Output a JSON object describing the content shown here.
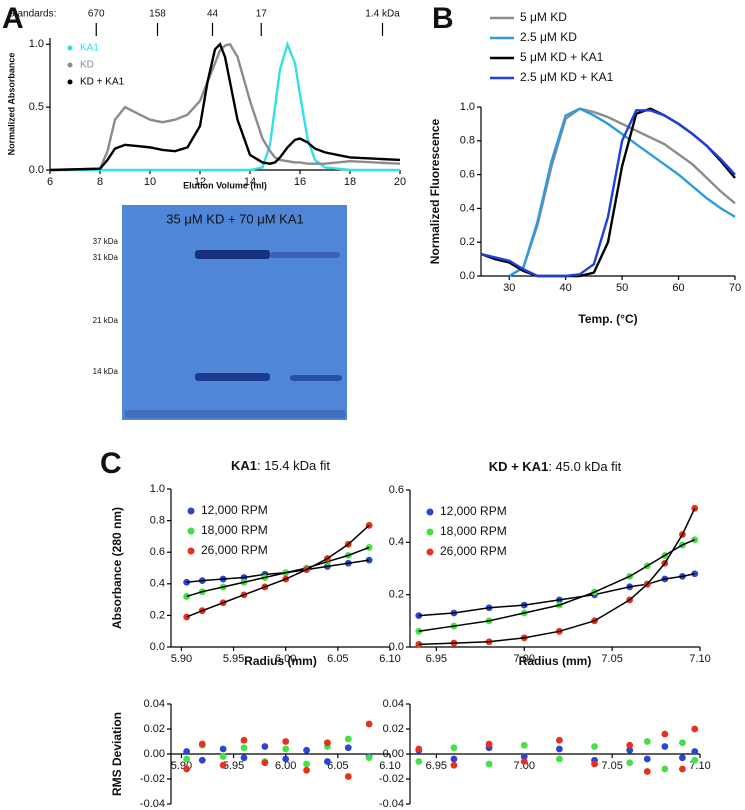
{
  "panel_labels": [
    "A",
    "B",
    "C"
  ],
  "gel": {
    "title": "35 μM KD + 70 μM KA1",
    "markers": [
      "37 kDa",
      "31 kDa",
      "21 kDa",
      "14 kDa"
    ]
  },
  "chart_data": [
    {
      "type": "line",
      "ylabel": "Normalized Absorbance",
      "xlabel": "Elution Volume (ml)",
      "xlim": [
        6,
        20
      ],
      "xticks": [
        6,
        8,
        10,
        12,
        14,
        16,
        18,
        20
      ],
      "ylim": [
        0,
        1.05
      ],
      "yticks": [
        {
          "value": 0,
          "label": "0.0"
        },
        0.5,
        {
          "value": 1,
          "label": "1.0"
        }
      ],
      "legend": "upper left",
      "legend_style": "dot",
      "legend_text": "colored",
      "standards_label": "Standards:",
      "standards": [
        {
          "x": 7.85,
          "label": "670"
        },
        {
          "x": 10.3,
          "label": "158"
        },
        {
          "x": 12.5,
          "label": "44"
        },
        {
          "x": 14.45,
          "label": "17"
        },
        {
          "x": 19.3,
          "label": "1.4 kDa"
        }
      ],
      "x": [
        6,
        8,
        8.3,
        8.6,
        9,
        9.5,
        10,
        10.5,
        11,
        11.5,
        12,
        12.3,
        12.6,
        12.8,
        13,
        13.2,
        13.5,
        14,
        14.5,
        14.8,
        15,
        15.2,
        15.5,
        15.8,
        16,
        16.3,
        16.6,
        17,
        18,
        19,
        20
      ],
      "series": [
        {
          "name": "KA1",
          "color": "#33e0e8",
          "values": [
            0,
            0,
            0,
            0,
            0,
            0,
            0,
            0,
            0,
            0,
            0,
            0,
            0,
            0,
            0,
            0,
            0,
            0,
            0.02,
            0.2,
            0.5,
            0.8,
            1.0,
            0.85,
            0.6,
            0.25,
            0.08,
            0.02,
            0,
            0,
            0
          ]
        },
        {
          "name": "KD",
          "color": "#8c8c8c",
          "values": [
            0,
            0.01,
            0.15,
            0.4,
            0.5,
            0.45,
            0.4,
            0.38,
            0.4,
            0.44,
            0.55,
            0.7,
            0.85,
            0.95,
            0.99,
            1.0,
            0.9,
            0.55,
            0.25,
            0.15,
            0.1,
            0.08,
            0.07,
            0.06,
            0.06,
            0.05,
            0.05,
            0.05,
            0.07,
            0.06,
            0.05
          ]
        },
        {
          "name": "KD + KA1",
          "color": "#000000",
          "values": [
            0,
            0.01,
            0.08,
            0.17,
            0.2,
            0.19,
            0.18,
            0.16,
            0.15,
            0.18,
            0.35,
            0.7,
            0.96,
            1.0,
            0.9,
            0.7,
            0.4,
            0.12,
            0.06,
            0.05,
            0.06,
            0.1,
            0.18,
            0.24,
            0.25,
            0.22,
            0.17,
            0.14,
            0.1,
            0.09,
            0.08
          ]
        }
      ]
    },
    {
      "type": "line",
      "ylabel": "Normalized Fluorescence",
      "xlabel": "Temp. (°C)",
      "xlim": [
        25,
        70
      ],
      "xticks": [
        30,
        40,
        50,
        60,
        70
      ],
      "ylim": [
        0,
        1.0
      ],
      "yticks": [
        {
          "value": 0,
          "label": "0.0"
        },
        0.2,
        0.4,
        0.6,
        0.8,
        {
          "value": 1,
          "label": "1.0"
        }
      ],
      "legend": "top",
      "legend_style": "line",
      "legend_text": "black",
      "x": [
        25,
        27.5,
        30,
        32.5,
        35,
        37.5,
        40,
        42.5,
        45,
        47.5,
        50,
        52.5,
        55,
        57.5,
        60,
        62.5,
        65,
        67.5,
        70
      ],
      "series": [
        {
          "name": "5 μM KD",
          "color": "#8c8c8c",
          "values": [
            null,
            null,
            0,
            0.05,
            0.3,
            0.65,
            0.93,
            0.99,
            0.97,
            0.94,
            0.9,
            0.86,
            0.82,
            0.78,
            0.72,
            0.66,
            0.58,
            0.5,
            0.43
          ]
        },
        {
          "name": "2.5 μM KD",
          "color": "#2e9be0",
          "values": [
            null,
            null,
            0,
            0.05,
            0.32,
            0.68,
            0.95,
            0.99,
            0.95,
            0.9,
            0.84,
            0.78,
            0.72,
            0.66,
            0.6,
            0.53,
            0.46,
            0.4,
            0.35
          ]
        },
        {
          "name": "5 μM KD + KA1",
          "color": "#000000",
          "values": [
            0.13,
            0.1,
            0.08,
            0.03,
            0,
            0,
            0,
            0,
            0.02,
            0.2,
            0.65,
            0.96,
            0.99,
            0.95,
            0.9,
            0.84,
            0.77,
            0.68,
            0.58
          ]
        },
        {
          "name": "2.5 μM KD + KA1",
          "color": "#1f3fd6",
          "values": [
            0.13,
            0.11,
            0.09,
            0.04,
            0,
            0,
            0,
            0.01,
            0.07,
            0.35,
            0.8,
            0.98,
            0.98,
            0.95,
            0.9,
            0.84,
            0.77,
            0.69,
            0.6
          ]
        }
      ]
    },
    {
      "type": "scatter",
      "title_bold": "KA1",
      "title": ": 15.4 kDa fit",
      "ylabel": "Absorbance (280 nm)",
      "xlabel": "Radius (mm)",
      "xlim": [
        5.89,
        6.1
      ],
      "xticks": [
        {
          "value": 5.9,
          "label": "5.90"
        },
        5.95,
        {
          "value": 6,
          "label": "6.00"
        },
        6.05,
        {
          "value": 6.1,
          "label": "6.10"
        }
      ],
      "ylim": [
        0,
        1.0
      ],
      "yticks": [
        {
          "value": 0,
          "label": "0.0"
        },
        0.2,
        0.4,
        0.6,
        0.8,
        {
          "value": 1,
          "label": "1.0"
        }
      ],
      "legend": "upper left",
      "fit_line": true,
      "fit_color": "#000000",
      "x": [
        5.905,
        5.92,
        5.94,
        5.96,
        5.98,
        6.0,
        6.02,
        6.04,
        6.06,
        6.08
      ],
      "series": [
        {
          "name": "12,000 RPM",
          "color": "#2b45d1",
          "values": [
            0.41,
            0.42,
            0.43,
            0.44,
            0.46,
            0.47,
            0.49,
            0.51,
            0.53,
            0.55
          ]
        },
        {
          "name": "18,000 RPM",
          "color": "#44e044",
          "values": [
            0.32,
            0.35,
            0.38,
            0.41,
            0.44,
            0.47,
            0.5,
            0.54,
            0.58,
            0.63
          ]
        },
        {
          "name": "26,000 RPM",
          "color": "#e8301c",
          "values": [
            0.19,
            0.23,
            0.28,
            0.33,
            0.38,
            0.43,
            0.49,
            0.56,
            0.65,
            0.77
          ]
        }
      ]
    },
    {
      "type": "scatter",
      "title_bold": "KD + KA1",
      "title": ": 45.0 kDa fit",
      "xlabel": "Radius (mm)",
      "xlim": [
        6.935,
        7.1
      ],
      "xticks": [
        6.95,
        {
          "value": 7,
          "label": "7.00"
        },
        7.05,
        {
          "value": 7.1,
          "label": "7.10"
        }
      ],
      "ylim": [
        0,
        0.6
      ],
      "yticks": [
        {
          "value": 0,
          "label": "0.0"
        },
        0.2,
        0.4,
        0.6
      ],
      "legend": "upper left",
      "fit_line": true,
      "fit_color": "#000000",
      "x": [
        6.94,
        6.96,
        6.98,
        7.0,
        7.02,
        7.04,
        7.06,
        7.07,
        7.08,
        7.09,
        7.097
      ],
      "series": [
        {
          "name": "12,000 RPM",
          "color": "#2b45d1",
          "values": [
            0.12,
            0.13,
            0.15,
            0.16,
            0.18,
            0.2,
            0.23,
            0.24,
            0.26,
            0.27,
            0.28
          ]
        },
        {
          "name": "18,000 RPM",
          "color": "#44e044",
          "values": [
            0.06,
            0.08,
            0.1,
            0.13,
            0.16,
            0.21,
            0.27,
            0.31,
            0.35,
            0.39,
            0.41
          ]
        },
        {
          "name": "26,000 RPM",
          "color": "#e8301c",
          "values": [
            0.01,
            0.015,
            0.02,
            0.035,
            0.06,
            0.1,
            0.18,
            0.24,
            0.32,
            0.43,
            0.53
          ]
        }
      ]
    },
    {
      "type": "scatter",
      "ylabel": "RMS Deviation",
      "xlim": [
        5.89,
        6.1
      ],
      "xticks": [
        {
          "value": 5.9,
          "label": "5.90"
        },
        5.95,
        {
          "value": 6,
          "label": "6.00"
        },
        6.05,
        {
          "value": 6.1,
          "label": "6.10"
        }
      ],
      "ylim": [
        -0.04,
        0.04
      ],
      "yticks": [
        -0.04,
        -0.02,
        {
          "value": 0,
          "label": "0.00"
        },
        0.02,
        0.04
      ],
      "x": [
        5.905,
        5.92,
        5.94,
        5.96,
        5.98,
        6.0,
        6.02,
        6.04,
        6.06,
        6.08
      ],
      "series": [
        {
          "color": "#2b45d1",
          "values": [
            0.002,
            -0.005,
            0.004,
            -0.003,
            0.006,
            -0.004,
            0.003,
            -0.006,
            0.005,
            -0.002
          ]
        },
        {
          "color": "#44e044",
          "values": [
            -0.004,
            0.007,
            -0.002,
            0.005,
            -0.006,
            0.004,
            -0.008,
            0.006,
            0.012,
            -0.003
          ]
        },
        {
          "color": "#e8301c",
          "values": [
            -0.012,
            0.008,
            -0.009,
            0.011,
            -0.007,
            0.01,
            -0.013,
            0.009,
            -0.018,
            0.024
          ]
        }
      ]
    },
    {
      "type": "scatter",
      "xlim": [
        6.935,
        7.1
      ],
      "xticks": [
        6.95,
        {
          "value": 7,
          "label": "7.00"
        },
        7.05,
        {
          "value": 7.1,
          "label": "7.10"
        }
      ],
      "ylim": [
        -0.04,
        0.04
      ],
      "yticks": [
        -0.04,
        -0.02,
        {
          "value": 0,
          "label": "0.00"
        },
        0.02,
        0.04
      ],
      "x": [
        6.94,
        6.96,
        6.98,
        7.0,
        7.02,
        7.04,
        7.06,
        7.07,
        7.08,
        7.09,
        7.097
      ],
      "series": [
        {
          "color": "#2b45d1",
          "values": [
            0.003,
            -0.004,
            0.005,
            -0.002,
            0.004,
            -0.005,
            0.003,
            -0.004,
            0.006,
            -0.003,
            0.002
          ]
        },
        {
          "color": "#44e044",
          "values": [
            -0.006,
            0.005,
            -0.008,
            0.007,
            -0.004,
            0.006,
            -0.007,
            0.01,
            -0.012,
            0.009,
            -0.005
          ]
        },
        {
          "color": "#e8301c",
          "values": [
            0.004,
            -0.009,
            0.008,
            -0.006,
            0.011,
            -0.008,
            0.007,
            -0.014,
            0.016,
            -0.012,
            0.02
          ]
        }
      ]
    }
  ]
}
